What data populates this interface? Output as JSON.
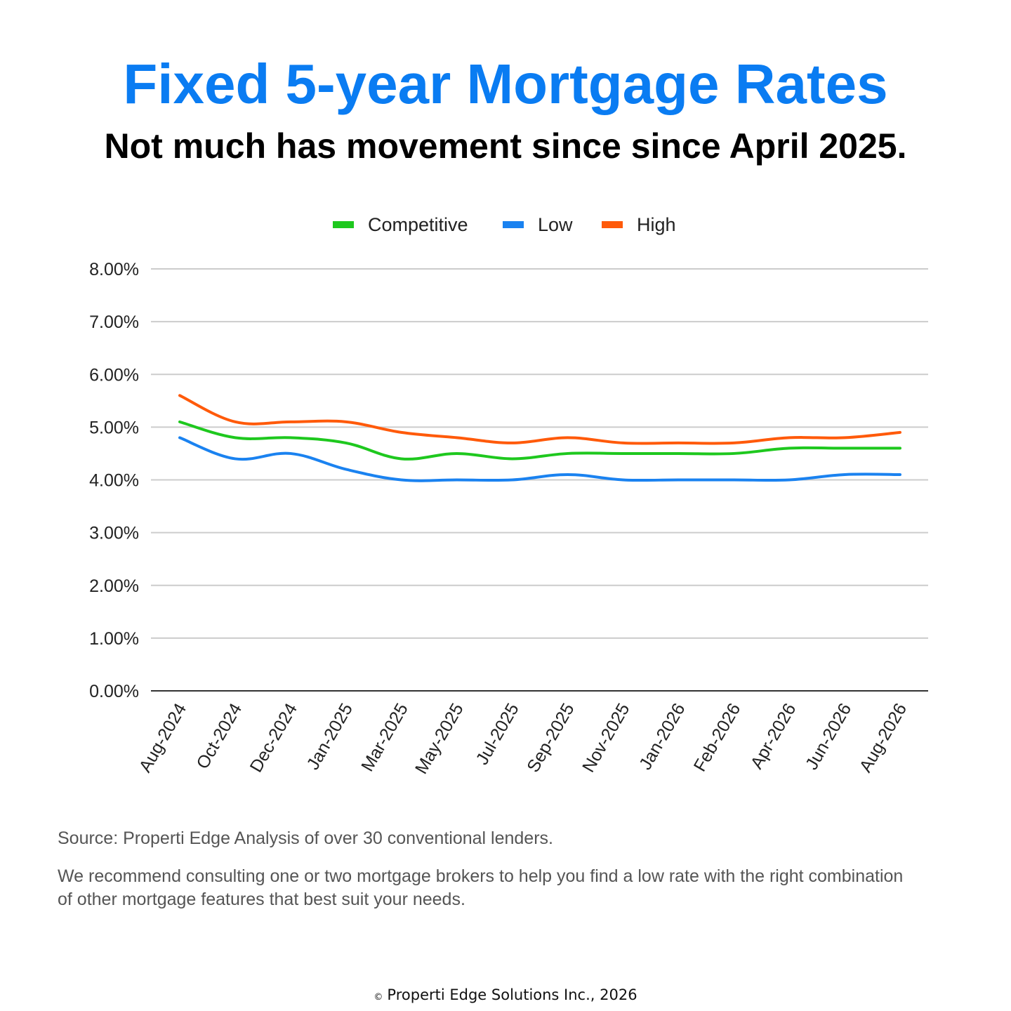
{
  "colors": {
    "title": "#0a7cf2",
    "competitive": "#1ec81e",
    "low": "#1a82f0",
    "high": "#ff5a0a",
    "grid": "#cccccc",
    "axis": "#333333"
  },
  "header": {
    "title": "Fixed 5-year Mortgage Rates",
    "subtitle": "Not much has movement since since April 2025."
  },
  "chart_data": {
    "type": "line",
    "categories": [
      "Aug-2024",
      "Oct-2024",
      "Dec-2024",
      "Jan-2025",
      "Mar-2025",
      "May-2025",
      "Jul-2025",
      "Sep-2025",
      "Nov-2025",
      "Jan-2026",
      "Feb-2026",
      "Apr-2026",
      "Jun-2026",
      "Aug-2026"
    ],
    "series": [
      {
        "name": "Competitive",
        "color": "#1ec81e",
        "values": [
          5.1,
          4.8,
          4.8,
          4.7,
          4.4,
          4.5,
          4.4,
          4.5,
          4.5,
          4.5,
          4.5,
          4.6,
          4.6,
          4.6
        ]
      },
      {
        "name": "Low",
        "color": "#1a82f0",
        "values": [
          4.8,
          4.4,
          4.5,
          4.2,
          4.0,
          4.0,
          4.0,
          4.1,
          4.0,
          4.0,
          4.0,
          4.0,
          4.1,
          4.1
        ]
      },
      {
        "name": "High",
        "color": "#ff5a0a",
        "values": [
          5.6,
          5.1,
          5.1,
          5.1,
          4.9,
          4.8,
          4.7,
          4.8,
          4.7,
          4.7,
          4.7,
          4.8,
          4.8,
          4.9
        ]
      }
    ],
    "yticks": [
      "0.00%",
      "1.00%",
      "2.00%",
      "3.00%",
      "4.00%",
      "5.00%",
      "6.00%",
      "7.00%",
      "8.00%"
    ],
    "ylim": [
      0,
      8
    ],
    "grid": true,
    "legend_position": "top-center",
    "smooth": true
  },
  "notes": {
    "source": "Source: Properti Edge Analysis of over 30 conventional lenders.",
    "recommendation": "We recommend consulting one or two mortgage brokers to help you find a low rate with the right combination of other mortgage features that best suit your needs."
  },
  "footer": {
    "copyright_symbol": "©",
    "text": "Properti Edge Solutions Inc., 2026"
  }
}
